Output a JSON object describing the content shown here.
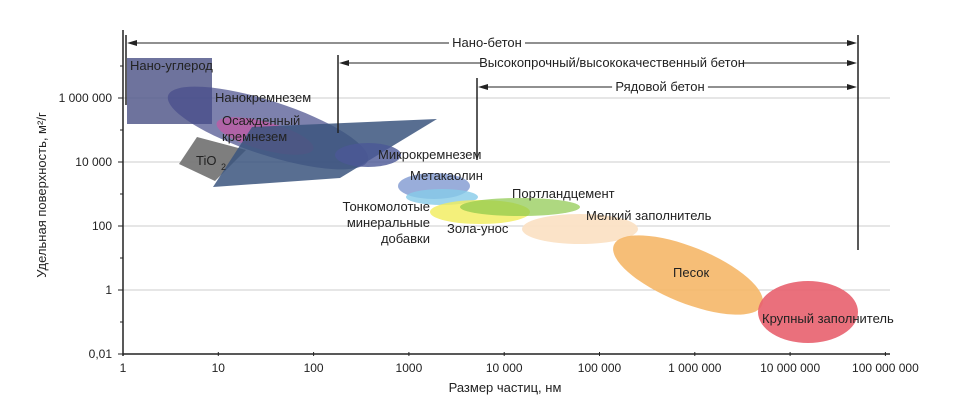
{
  "chart_data": {
    "type": "scatter",
    "title": "",
    "xlabel": "Размер частиц, нм",
    "ylabel": "Удельная поверхность, м²/г",
    "xscale": "log",
    "yscale": "log",
    "xlim": [
      1,
      100000000
    ],
    "ylim": [
      0.01,
      10000000
    ],
    "grid": true,
    "xticks": [
      "1",
      "10",
      "100",
      "1000",
      "10 000",
      "100 000",
      "1 000 000",
      "10 000 000",
      "100 000 000"
    ],
    "yticks": [
      "1 000 000",
      "10 000",
      "100",
      "1",
      "0,01"
    ],
    "ranges": [
      {
        "label": "Нано-бетон",
        "x": [
          1,
          100000000
        ]
      },
      {
        "label": "Высокопрочный/высококачественный бетон",
        "x": [
          200,
          100000000
        ]
      },
      {
        "label": "Рядовой бетон",
        "x": [
          5000,
          100000000
        ]
      }
    ],
    "materials": [
      {
        "label": "Нано-углерод",
        "x": [
          1,
          10
        ],
        "y": [
          100000,
          10000000
        ]
      },
      {
        "label": "Нанокремнезем",
        "x": [
          5,
          300
        ],
        "y": [
          3000,
          1000000
        ]
      },
      {
        "label": "Осажденный",
        "label2": "кремнезем",
        "x": [
          10,
          80
        ],
        "y": [
          5000,
          100000
        ]
      },
      {
        "label": "TiO",
        "sub": "2",
        "x": [
          5,
          30
        ],
        "y": [
          3000,
          30000
        ]
      },
      {
        "label": "Микрокремнезем",
        "x": [
          200,
          1000
        ],
        "y": [
          5000,
          30000
        ]
      },
      {
        "label": "Метакаолин",
        "x": [
          1000,
          5000
        ],
        "y": [
          500,
          3000
        ]
      },
      {
        "label": "Портландцемент",
        "x": [
          3000,
          100000
        ],
        "y": [
          200,
          1000
        ]
      },
      {
        "label": "Мелкий заполнитель",
        "x": [
          10000,
          300000
        ],
        "y": [
          30,
          300
        ]
      },
      {
        "label": "Тонкомолотые",
        "label2": "минеральные",
        "label3": "добавки",
        "x": [
          1000,
          10000
        ],
        "y": [
          200,
          1000
        ]
      },
      {
        "label": "Зола-унос",
        "x": [
          2000,
          50000
        ],
        "y": [
          100,
          500
        ]
      },
      {
        "label": "Песок",
        "x": [
          100000,
          5000000
        ],
        "y": [
          0.5,
          100
        ]
      },
      {
        "label": "Крупный заполнитель",
        "x": [
          5000000,
          50000000
        ],
        "y": [
          0.1,
          3
        ]
      }
    ]
  }
}
